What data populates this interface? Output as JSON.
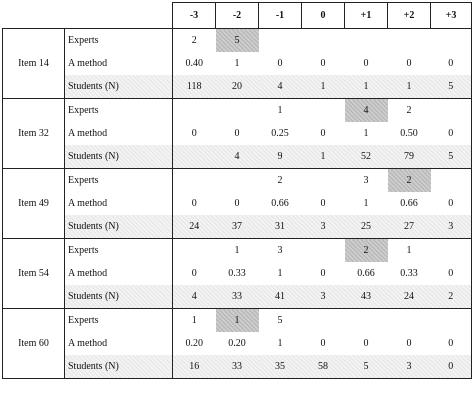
{
  "columns": [
    "-3",
    "-2",
    "-1",
    "0",
    "+1",
    "+2",
    "+3"
  ],
  "row_labels": {
    "experts": "Experts",
    "method": "A method",
    "students": "Students (N)"
  },
  "items": [
    {
      "label": "Item 14",
      "experts": [
        "2",
        "5",
        "",
        "",
        "",
        "",
        ""
      ],
      "method": [
        "0.40",
        "1",
        "0",
        "0",
        "0",
        "0",
        "0"
      ],
      "students": [
        "118",
        "20",
        "4",
        "1",
        "1",
        "1",
        "5"
      ],
      "highlight_col": 1
    },
    {
      "label": "Item 32",
      "experts": [
        "",
        "",
        "1",
        "",
        "4",
        "2",
        ""
      ],
      "method": [
        "0",
        "0",
        "0.25",
        "0",
        "1",
        "0.50",
        "0"
      ],
      "students": [
        "",
        "4",
        "9",
        "1",
        "52",
        "79",
        "5"
      ],
      "highlight_col": 4
    },
    {
      "label": "Item 49",
      "experts": [
        "",
        "",
        "2",
        "",
        "3",
        "2",
        ""
      ],
      "method": [
        "0",
        "0",
        "0.66",
        "0",
        "1",
        "0.66",
        "0"
      ],
      "students": [
        "24",
        "37",
        "31",
        "3",
        "25",
        "27",
        "3"
      ],
      "highlight_col": 5
    },
    {
      "label": "Item 54",
      "experts": [
        "",
        "1",
        "3",
        "",
        "2",
        "1",
        ""
      ],
      "method": [
        "0",
        "0.33",
        "1",
        "0",
        "0.66",
        "0.33",
        "0"
      ],
      "students": [
        "4",
        "33",
        "41",
        "3",
        "43",
        "24",
        "2"
      ],
      "highlight_col": 4
    },
    {
      "label": "Item 60",
      "experts": [
        "1",
        "1",
        "5",
        "",
        "",
        "",
        ""
      ],
      "method": [
        "0.20",
        "0.20",
        "1",
        "0",
        "0",
        "0",
        "0"
      ],
      "students": [
        "16",
        "33",
        "35",
        "58",
        "5",
        "3",
        "0"
      ],
      "highlight_col": 1
    }
  ]
}
